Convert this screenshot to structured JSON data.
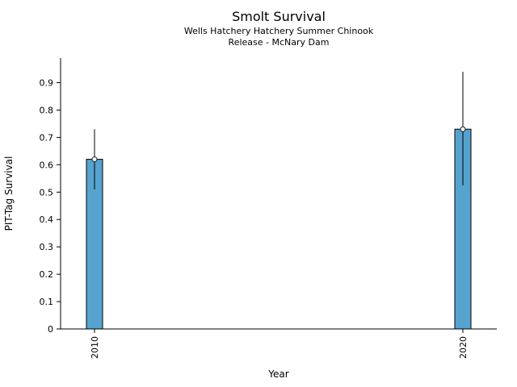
{
  "page": {
    "background": "#ffffff",
    "text_color": "#000000"
  },
  "chart_data": {
    "type": "bar",
    "title": "Smolt Survival",
    "subtitle_lines": [
      "Wells Hatchery Hatchery Summer Chinook",
      "Release - McNary Dam"
    ],
    "xlabel": "Year",
    "ylabel": "PIT-Tag Survival",
    "categories": [
      "2010",
      "2020"
    ],
    "values": [
      0.62,
      0.73
    ],
    "error_low": [
      0.51,
      0.525
    ],
    "error_high": [
      0.73,
      0.94
    ],
    "yticks": [
      0,
      0.1,
      0.2,
      0.3,
      0.4,
      0.5,
      0.6,
      0.7,
      0.8,
      0.9
    ],
    "ytick_labels": [
      "0",
      "0.1",
      "0.2",
      "0.3",
      "0.4",
      "0.5",
      "0.6",
      "0.7",
      "0.8",
      "0.9"
    ],
    "ylim": [
      0,
      0.99
    ],
    "bar_color": "#56a3cf",
    "bar_edge_color": "#000000",
    "error_color": "#000000",
    "marker": "open-circle",
    "marker_face": "#ffffff",
    "marker_edge": "#1a1a1a",
    "grid": false,
    "legend": null
  }
}
